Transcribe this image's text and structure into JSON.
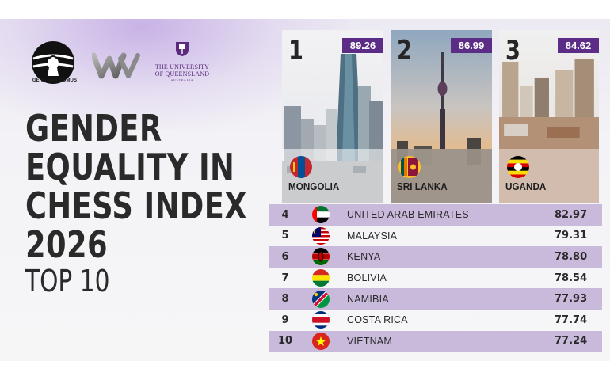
{
  "logos": {
    "fide_word": "FIDE",
    "fide_motto": "GENS UNA SUMUS",
    "uq_name_line1": "THE UNIVERSITY",
    "uq_name_line2": "OF QUEENSLAND",
    "uq_sub": "AUSTRALIA"
  },
  "title": {
    "line1": "GENDER",
    "line2": "EQUALITY IN",
    "line3": "CHESS INDEX",
    "line4": "2026",
    "subtitle": "TOP 10"
  },
  "podium": [
    {
      "rank": "1",
      "score": "89.26",
      "country": "MONGOLIA",
      "flag": "mongolia-flag-icon"
    },
    {
      "rank": "2",
      "score": "86.99",
      "country": "SRI LANKA",
      "flag": "sri-lanka-flag-icon"
    },
    {
      "rank": "3",
      "score": "84.62",
      "country": "UGANDA",
      "flag": "uganda-flag-icon"
    }
  ],
  "rows": [
    {
      "rank": "4",
      "country": "UNITED ARAB EMIRATES",
      "score": "82.97",
      "flag": "uae-flag-icon"
    },
    {
      "rank": "5",
      "country": "MALAYSIA",
      "score": "79.31",
      "flag": "malaysia-flag-icon"
    },
    {
      "rank": "6",
      "country": "KENYA",
      "score": "78.80",
      "flag": "kenya-flag-icon"
    },
    {
      "rank": "7",
      "country": "BOLIVIA",
      "score": "78.54",
      "flag": "bolivia-flag-icon"
    },
    {
      "rank": "8",
      "country": "NAMIBIA",
      "score": "77.93",
      "flag": "namibia-flag-icon"
    },
    {
      "rank": "9",
      "country": "COSTA RICA",
      "score": "77.74",
      "flag": "costa-rica-flag-icon"
    },
    {
      "rank": "10",
      "country": "VIETNAM",
      "score": "77.24",
      "flag": "vietnam-flag-icon"
    }
  ],
  "colors": {
    "accent": "#5c2d86",
    "row_shade": "#c9b9db",
    "text": "#2a2a2a"
  }
}
